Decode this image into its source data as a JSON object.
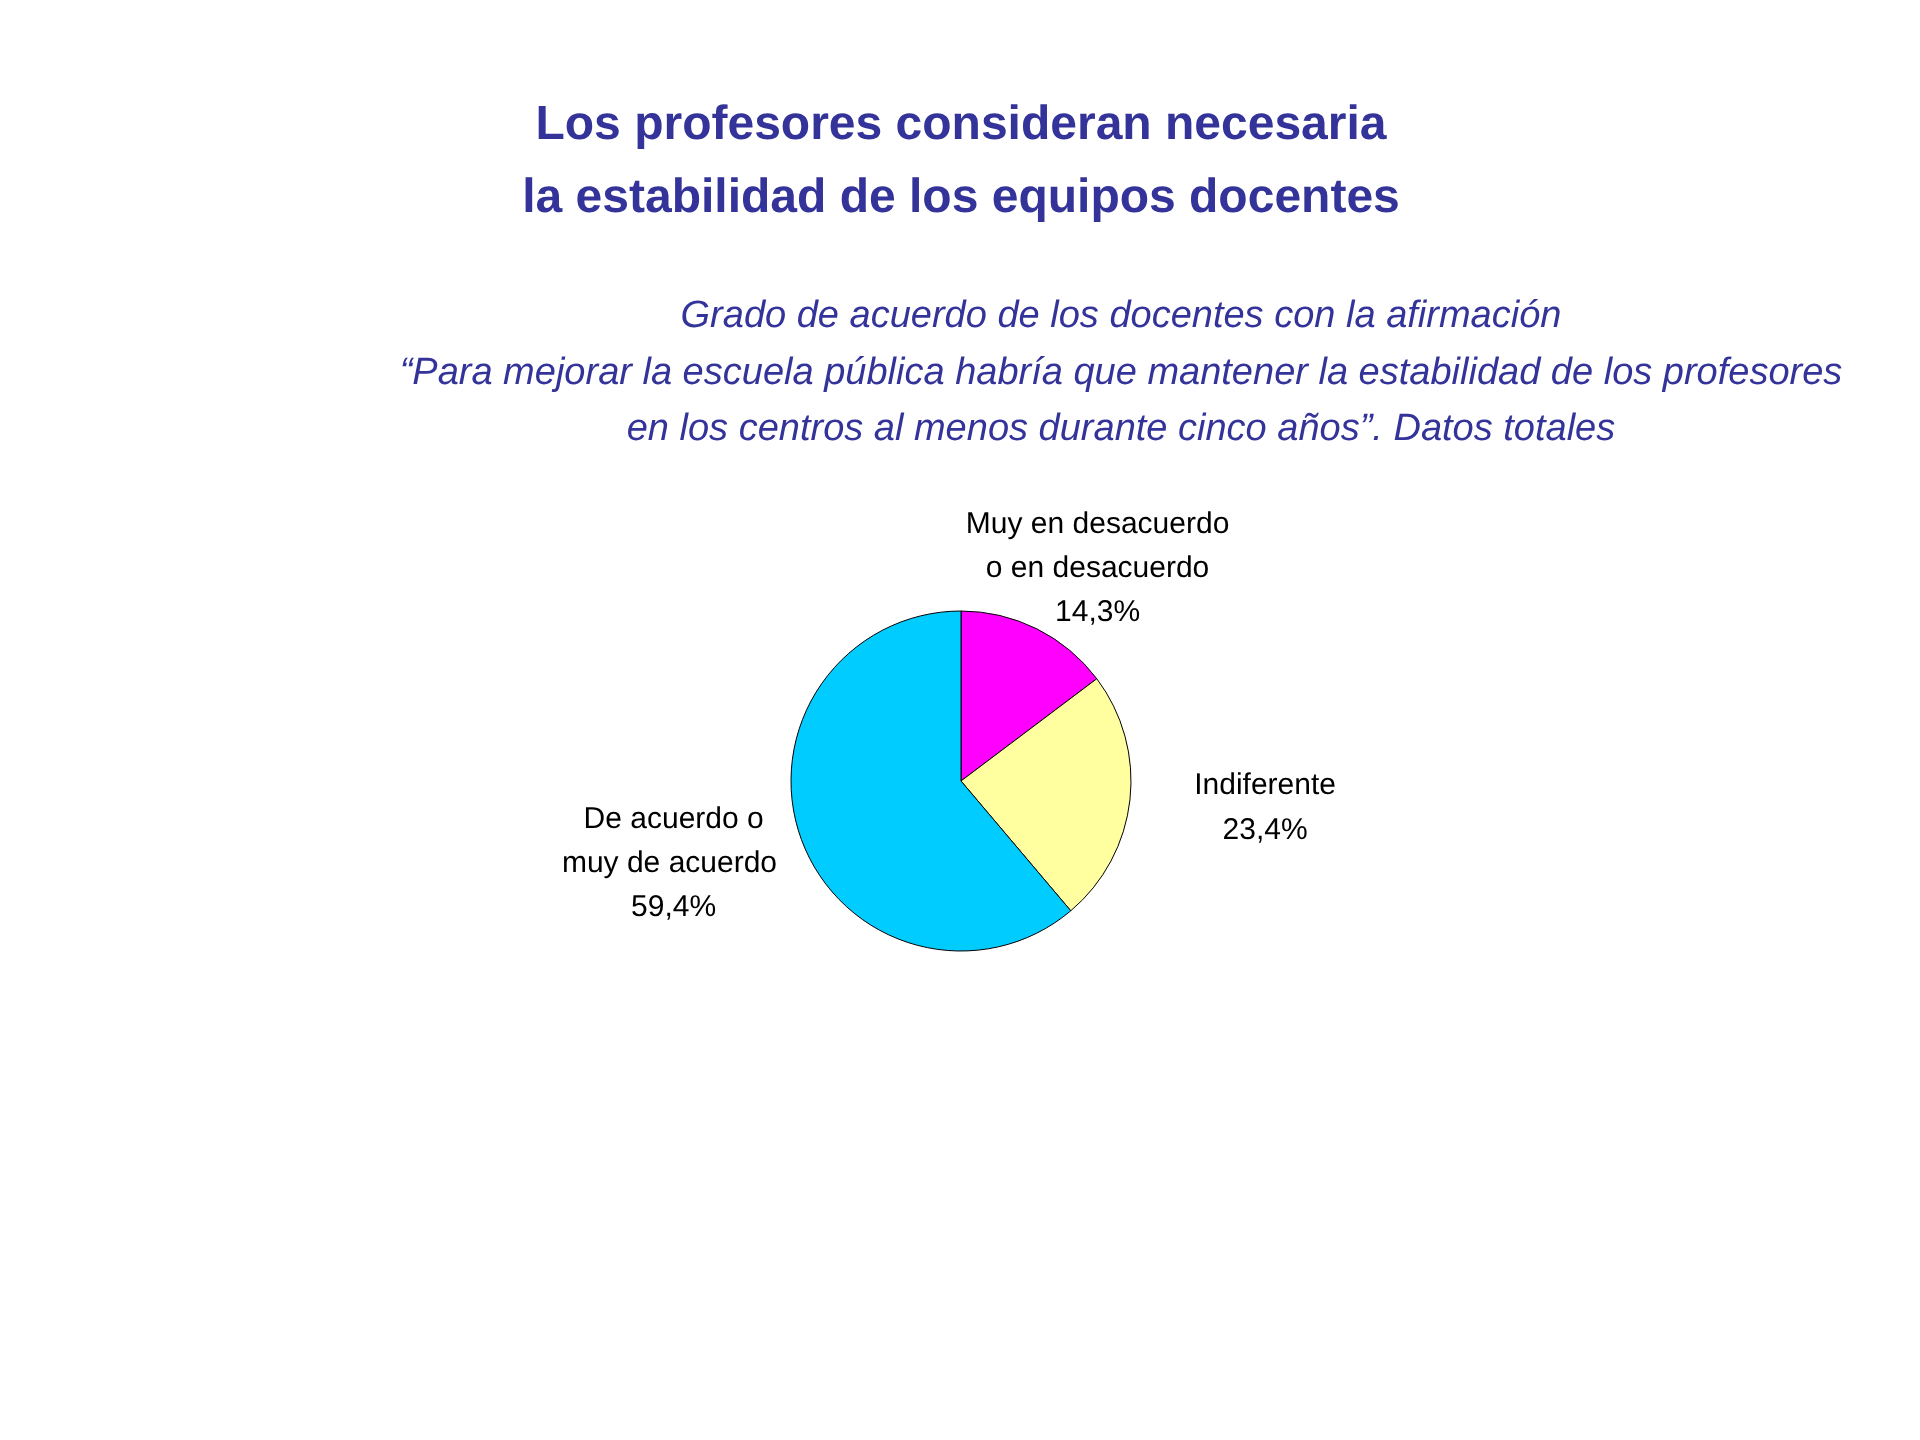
{
  "chart_data": {
    "type": "pie",
    "title": "Los profesores consideran necesaria\nla estabilidad de los equipos docentes",
    "subtitle": "Grado de acuerdo de los docentes con la afirmación\n“Para mejorar la escuela pública habría que mantener la estabilidad de los profesores\nen los centros al menos durante cinco años”. Datos totales",
    "categories": [
      "Muy en desacuerdo\no en desacuerdo",
      "Indiferente",
      "De acuerdo o\nmuy  de acuerdo"
    ],
    "values": [
      14.3,
      23.4,
      59.4
    ],
    "colors": [
      "#ff00ff",
      "#ffffa0",
      "#00ccff"
    ],
    "value_labels": [
      "14,3%",
      "23,4%",
      "59,4%"
    ]
  }
}
